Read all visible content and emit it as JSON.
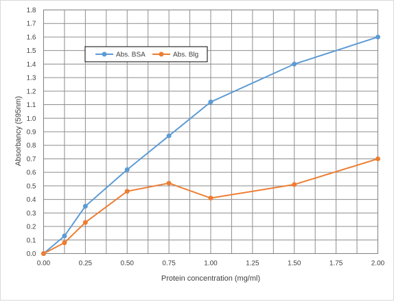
{
  "chart_data": {
    "type": "line",
    "title": "",
    "xlabel": "Protein concentration (mg/ml)",
    "ylabel": "Absorbancy (595nm)",
    "xlim": [
      0,
      2
    ],
    "ylim": [
      0,
      1.8
    ],
    "x_ticks": [
      "0.00",
      "0.25",
      "0.50",
      "0.75",
      "1.00",
      "1.25",
      "1.50",
      "1.75",
      "2.00"
    ],
    "y_ticks": [
      "0.0",
      "0.1",
      "0.2",
      "0.3",
      "0.4",
      "0.5",
      "0.6",
      "0.7",
      "0.8",
      "0.9",
      "1.0",
      "1.1",
      "1.2",
      "1.3",
      "1.4",
      "1.5",
      "1.6",
      "1.7",
      "1.8"
    ],
    "grid": true,
    "legend_position": "top-left",
    "series": [
      {
        "name": "Abs. BSA",
        "color": "#5b9bd5",
        "x": [
          0,
          0.125,
          0.25,
          0.5,
          0.75,
          1.0,
          1.5,
          2.0
        ],
        "y": [
          0,
          0.13,
          0.35,
          0.62,
          0.87,
          1.12,
          1.4,
          1.6
        ]
      },
      {
        "name": "Abs. Blg",
        "color": "#ed7d31",
        "x": [
          0,
          0.125,
          0.25,
          0.5,
          0.75,
          1.0,
          1.5,
          2.0
        ],
        "y": [
          0,
          0.08,
          0.23,
          0.46,
          0.52,
          0.41,
          0.51,
          0.7
        ]
      }
    ]
  }
}
